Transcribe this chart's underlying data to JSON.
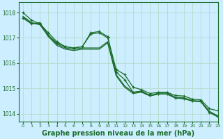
{
  "bg_color": "#cceeff",
  "grid_color": "#b8ddd0",
  "line_color": "#1a6b2a",
  "title": "Graphe pression niveau de la mer (hPa)",
  "xlabel_fontsize": 7.0,
  "xlim": [
    -0.5,
    23
  ],
  "ylim": [
    1013.7,
    1018.4
  ],
  "yticks": [
    1014,
    1015,
    1016,
    1017,
    1018
  ],
  "xticks": [
    0,
    1,
    2,
    3,
    4,
    5,
    6,
    7,
    8,
    9,
    10,
    11,
    12,
    13,
    14,
    15,
    16,
    17,
    18,
    19,
    20,
    21,
    22,
    23
  ],
  "series": [
    {
      "y": [
        1018.0,
        1017.7,
        1017.55,
        1017.2,
        1016.85,
        1016.65,
        1016.6,
        1016.65,
        1017.15,
        1017.2,
        1017.0,
        1015.75,
        1015.55,
        1015.05,
        1014.95,
        1014.8,
        1014.85,
        1014.85,
        1014.72,
        1014.7,
        1014.58,
        1014.55,
        1014.2,
        1014.12
      ],
      "marker": true,
      "linewidth": 0.9
    },
    {
      "y": [
        1017.85,
        1017.6,
        1017.55,
        1017.1,
        1016.75,
        1016.6,
        1016.55,
        1016.6,
        1016.6,
        1016.6,
        1016.85,
        1015.55,
        1015.1,
        1014.85,
        1014.88,
        1014.72,
        1014.82,
        1014.82,
        1014.65,
        1014.63,
        1014.52,
        1014.5,
        1014.1,
        1013.92
      ],
      "marker": false,
      "linewidth": 0.9
    },
    {
      "y": [
        1017.82,
        1017.58,
        1017.52,
        1017.05,
        1016.7,
        1016.55,
        1016.5,
        1016.55,
        1016.55,
        1016.55,
        1016.8,
        1015.5,
        1015.05,
        1014.8,
        1014.85,
        1014.7,
        1014.78,
        1014.78,
        1014.62,
        1014.6,
        1014.5,
        1014.48,
        1014.05,
        1013.88
      ],
      "marker": false,
      "linewidth": 0.9
    },
    {
      "y": [
        1017.78,
        1017.55,
        1017.6,
        1017.1,
        1016.8,
        1016.65,
        1016.6,
        1016.65,
        1017.2,
        1017.25,
        1017.05,
        1015.65,
        1015.35,
        1014.85,
        1014.9,
        1014.72,
        1014.78,
        1014.78,
        1014.62,
        1014.6,
        1014.5,
        1014.48,
        1014.05,
        1013.88
      ],
      "marker": true,
      "linewidth": 0.9
    }
  ]
}
